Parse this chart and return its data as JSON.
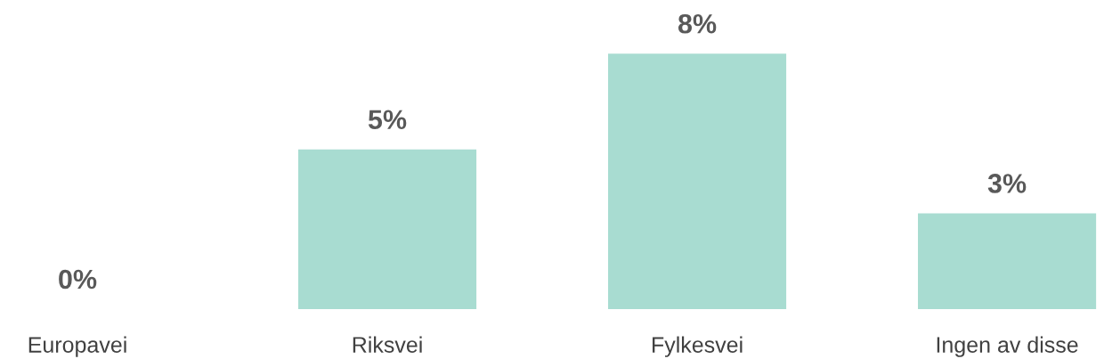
{
  "chart_data": {
    "type": "bar",
    "categories": [
      "Europavei",
      "Riksvei",
      "Fylkesvei",
      "Ingen av disse"
    ],
    "values": [
      0,
      5,
      8,
      3
    ],
    "value_labels": [
      "0%",
      "5%",
      "8%",
      "3%"
    ],
    "color": "#a8dcd1",
    "grid": false,
    "legend": false
  }
}
